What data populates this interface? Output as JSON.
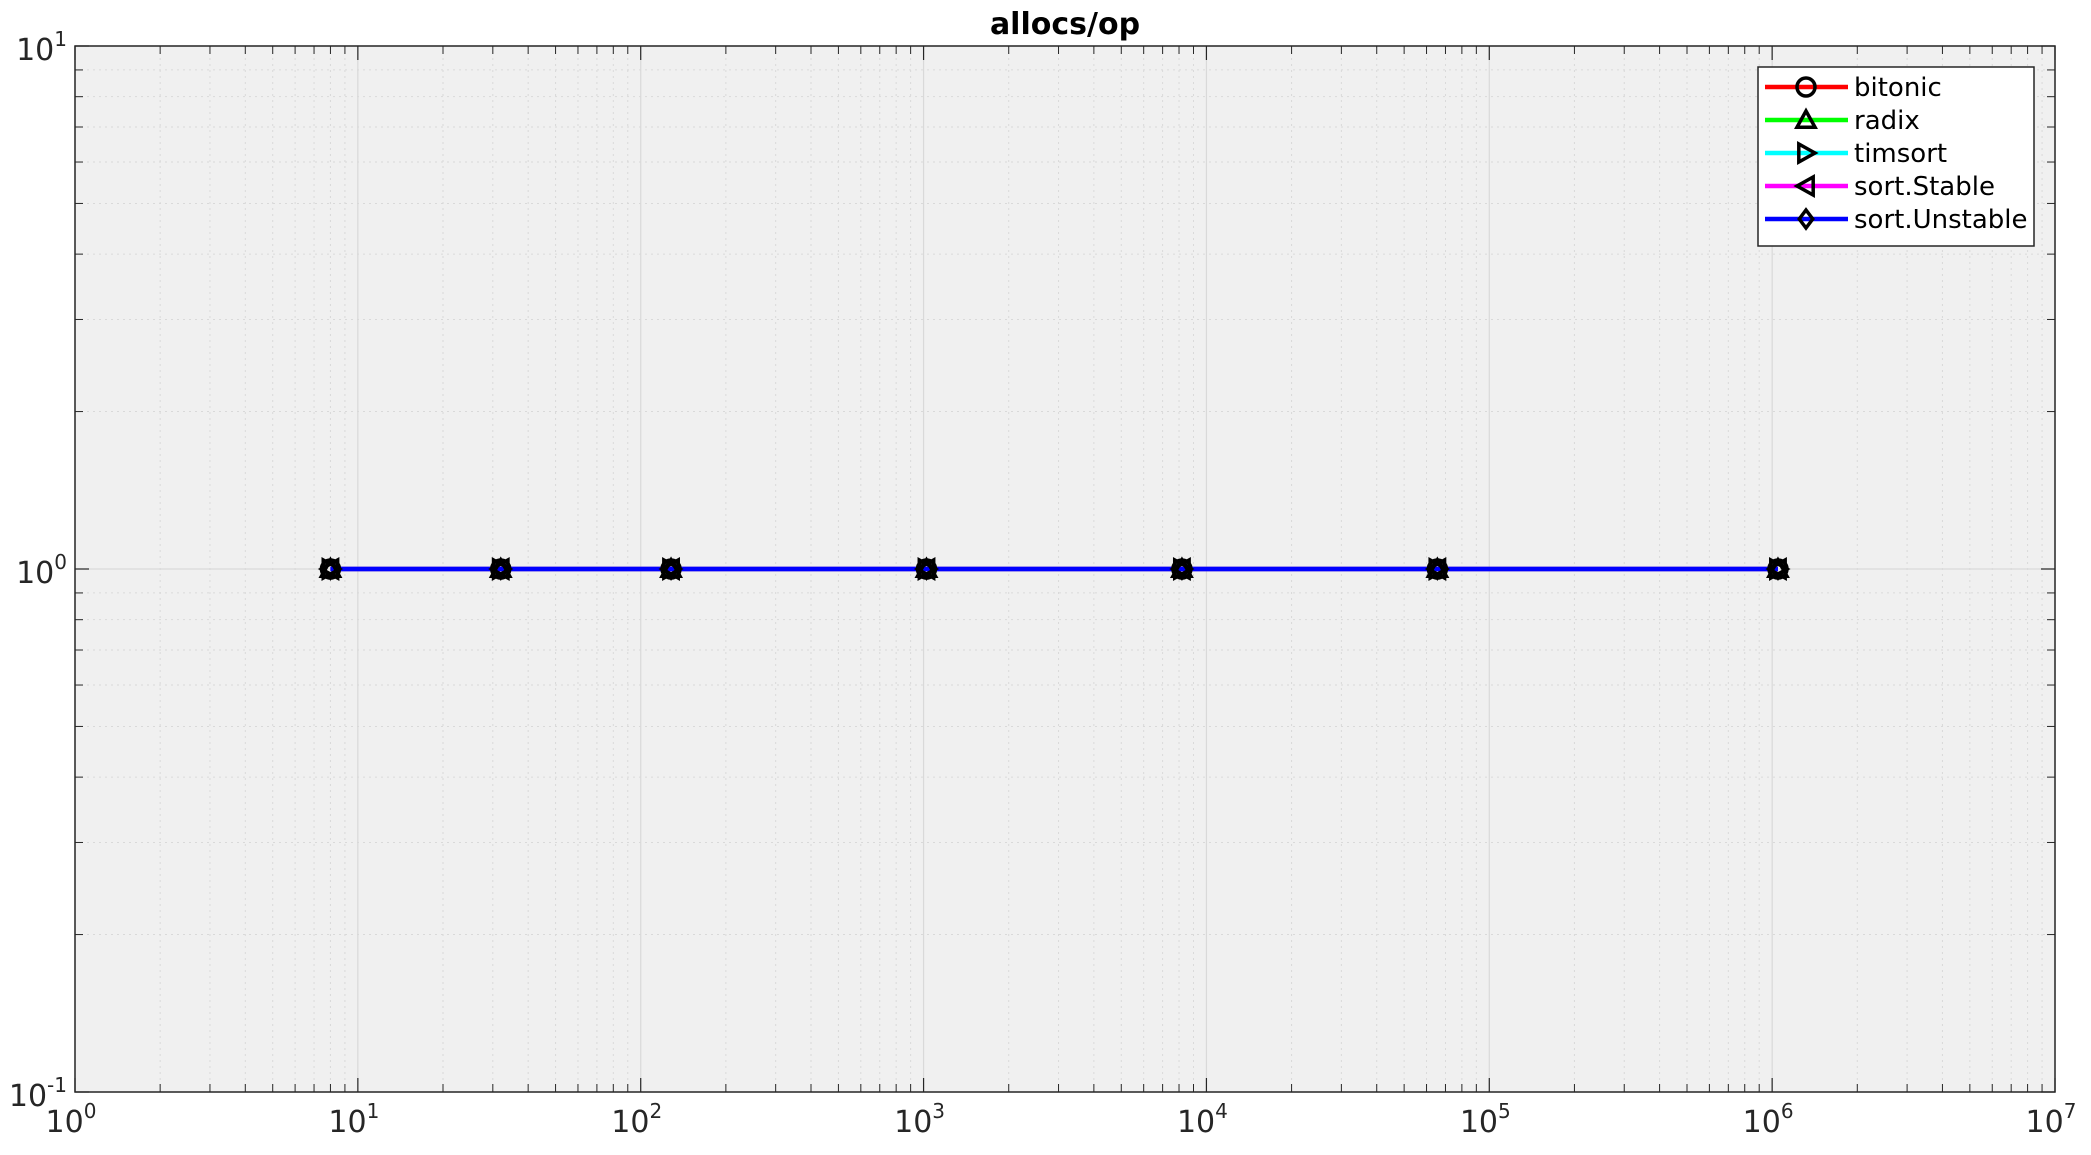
{
  "chart_data": {
    "type": "line",
    "title": "allocs/op",
    "xlabel": "",
    "ylabel": "",
    "xscale": "log",
    "yscale": "log",
    "xlim": [
      1,
      10000000
    ],
    "ylim": [
      0.1,
      10
    ],
    "x_ticks": [
      {
        "base": "10",
        "exp": "0"
      },
      {
        "base": "10",
        "exp": "1"
      },
      {
        "base": "10",
        "exp": "2"
      },
      {
        "base": "10",
        "exp": "3"
      },
      {
        "base": "10",
        "exp": "4"
      },
      {
        "base": "10",
        "exp": "5"
      },
      {
        "base": "10",
        "exp": "6"
      },
      {
        "base": "10",
        "exp": "7"
      }
    ],
    "y_ticks": [
      {
        "base": "10",
        "exp": "-1"
      },
      {
        "base": "10",
        "exp": "0"
      },
      {
        "base": "10",
        "exp": "1"
      }
    ],
    "grid": true,
    "minor_grid": true,
    "legend_position": "top-right",
    "x": [
      8,
      32,
      128,
      1024,
      8192,
      65536,
      1048576
    ],
    "series": [
      {
        "name": "bitonic",
        "color": "#ff0000",
        "marker": "circle",
        "values": [
          1,
          1,
          1,
          1,
          1,
          1,
          1
        ]
      },
      {
        "name": "radix",
        "color": "#00ff00",
        "marker": "triangle-up",
        "values": [
          1,
          1,
          1,
          1,
          1,
          1,
          1
        ]
      },
      {
        "name": "timsort",
        "color": "#00ffff",
        "marker": "triangle-right",
        "values": [
          1,
          1,
          1,
          1,
          1,
          1,
          1
        ]
      },
      {
        "name": "sort.Stable",
        "color": "#ff00ff",
        "marker": "triangle-left",
        "values": [
          1,
          1,
          1,
          1,
          1,
          1,
          1
        ]
      },
      {
        "name": "sort.Unstable",
        "color": "#0000ff",
        "marker": "diamond",
        "values": [
          1,
          1,
          1,
          1,
          1,
          1,
          1
        ]
      }
    ],
    "colors": {
      "plot_background": "#f0f0f0",
      "grid": "#d9d9d9",
      "axis": "#262626",
      "marker_edge": "#000000"
    }
  }
}
